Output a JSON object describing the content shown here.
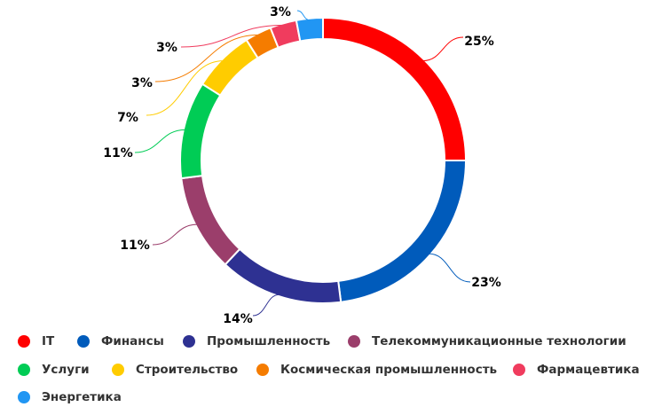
{
  "chart_data": {
    "type": "pie",
    "title": "",
    "categories": [
      "IT",
      "Финансы",
      "Промышленность",
      "Телекоммуникационные технологии",
      "Услуги",
      "Строительство",
      "Космическая промышленность",
      "Фармацевтика",
      "Энергетика"
    ],
    "values": [
      25,
      23,
      14,
      11,
      11,
      7,
      3,
      3,
      3
    ],
    "labels": [
      "25%",
      "23%",
      "14%",
      "11%",
      "11%",
      "7%",
      "3%",
      "3%",
      "3%"
    ],
    "colors": [
      "#ff0000",
      "#005bbb",
      "#2e3192",
      "#9b3e6b",
      "#00cc55",
      "#ffcc00",
      "#f57c00",
      "#f03c5e",
      "#2196f3"
    ],
    "legend_position": "bottom"
  }
}
